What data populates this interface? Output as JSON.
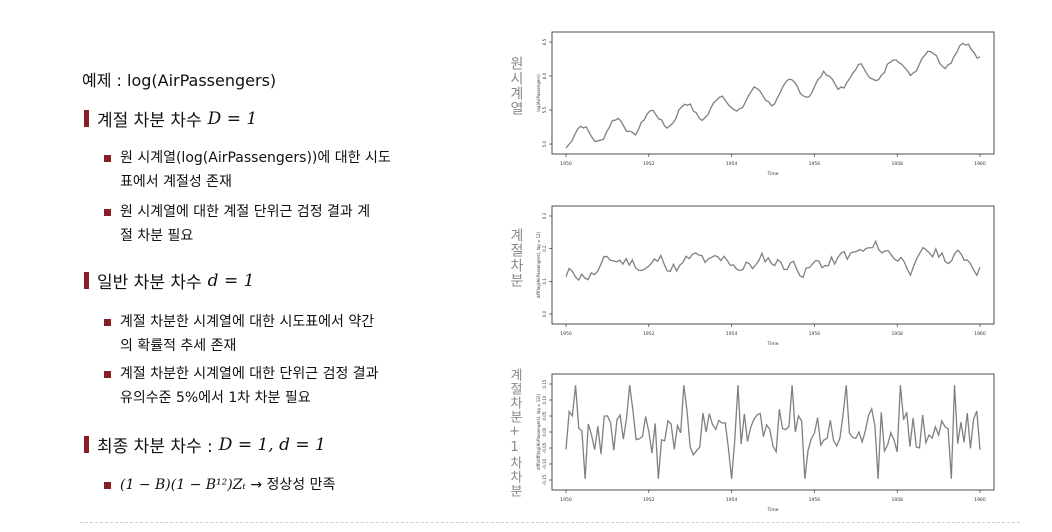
{
  "title": "예제 : log(AirPassengers)",
  "sections": [
    {
      "label": "계절 차분 차수",
      "math": "D = 1",
      "bullets": [
        "원 시계열(log(AirPassengers))에 대한 시도",
        "표에서 계절성 존재",
        "원 시계열에 대한 계절 단위근 검정 결과 계",
        "절 차분 필요"
      ]
    },
    {
      "label": "일반 차분 차수",
      "math": "d = 1",
      "bullets": [
        "계절 차분한 시계열에 대한 시도표에서 약간",
        "의 확률적 추세 존재",
        "계절 차분한 시계열에 대한 단위근 검정 결과",
        "유의수준 5%에서 1차 차분 필요"
      ]
    },
    {
      "label": "최종 차분 차수 :",
      "math": "D = 1,  d = 1",
      "bullets": [
        "(1 − B)(1 − B¹²)Zₜ",
        "→ 정상성 만족"
      ]
    }
  ],
  "plots": [
    {
      "side_label": "원시계열",
      "xlabel": "Time",
      "ylabel": "log(AirPassengers)",
      "xticks": [
        "1950",
        "1952",
        "1954",
        "1956",
        "1958",
        "1960"
      ],
      "yticks": [
        "5.0",
        "5.5",
        "6.0",
        "6.5"
      ],
      "line_color": "#808080"
    },
    {
      "side_label": "계절차분",
      "xlabel": "Time",
      "ylabel": "diff(log(AirPassengers), lag = 12)",
      "xticks": [
        "1950",
        "1952",
        "1954",
        "1956",
        "1958",
        "1960"
      ],
      "yticks": [
        "0.0",
        "0.1",
        "0.2",
        "0.3"
      ],
      "line_color": "#808080"
    },
    {
      "side_label": "계절차분+1차차분",
      "xlabel": "Time",
      "ylabel": "diff(diff(log(AirPassengers), lag = 12))",
      "xticks": [
        "1950",
        "1952",
        "1954",
        "1956",
        "1958",
        "1960"
      ],
      "yticks": [
        "-0.15",
        "-0.10",
        "-0.05",
        "0.00",
        "0.05",
        "0.10",
        "0.15"
      ],
      "line_color": "#808080"
    }
  ]
}
